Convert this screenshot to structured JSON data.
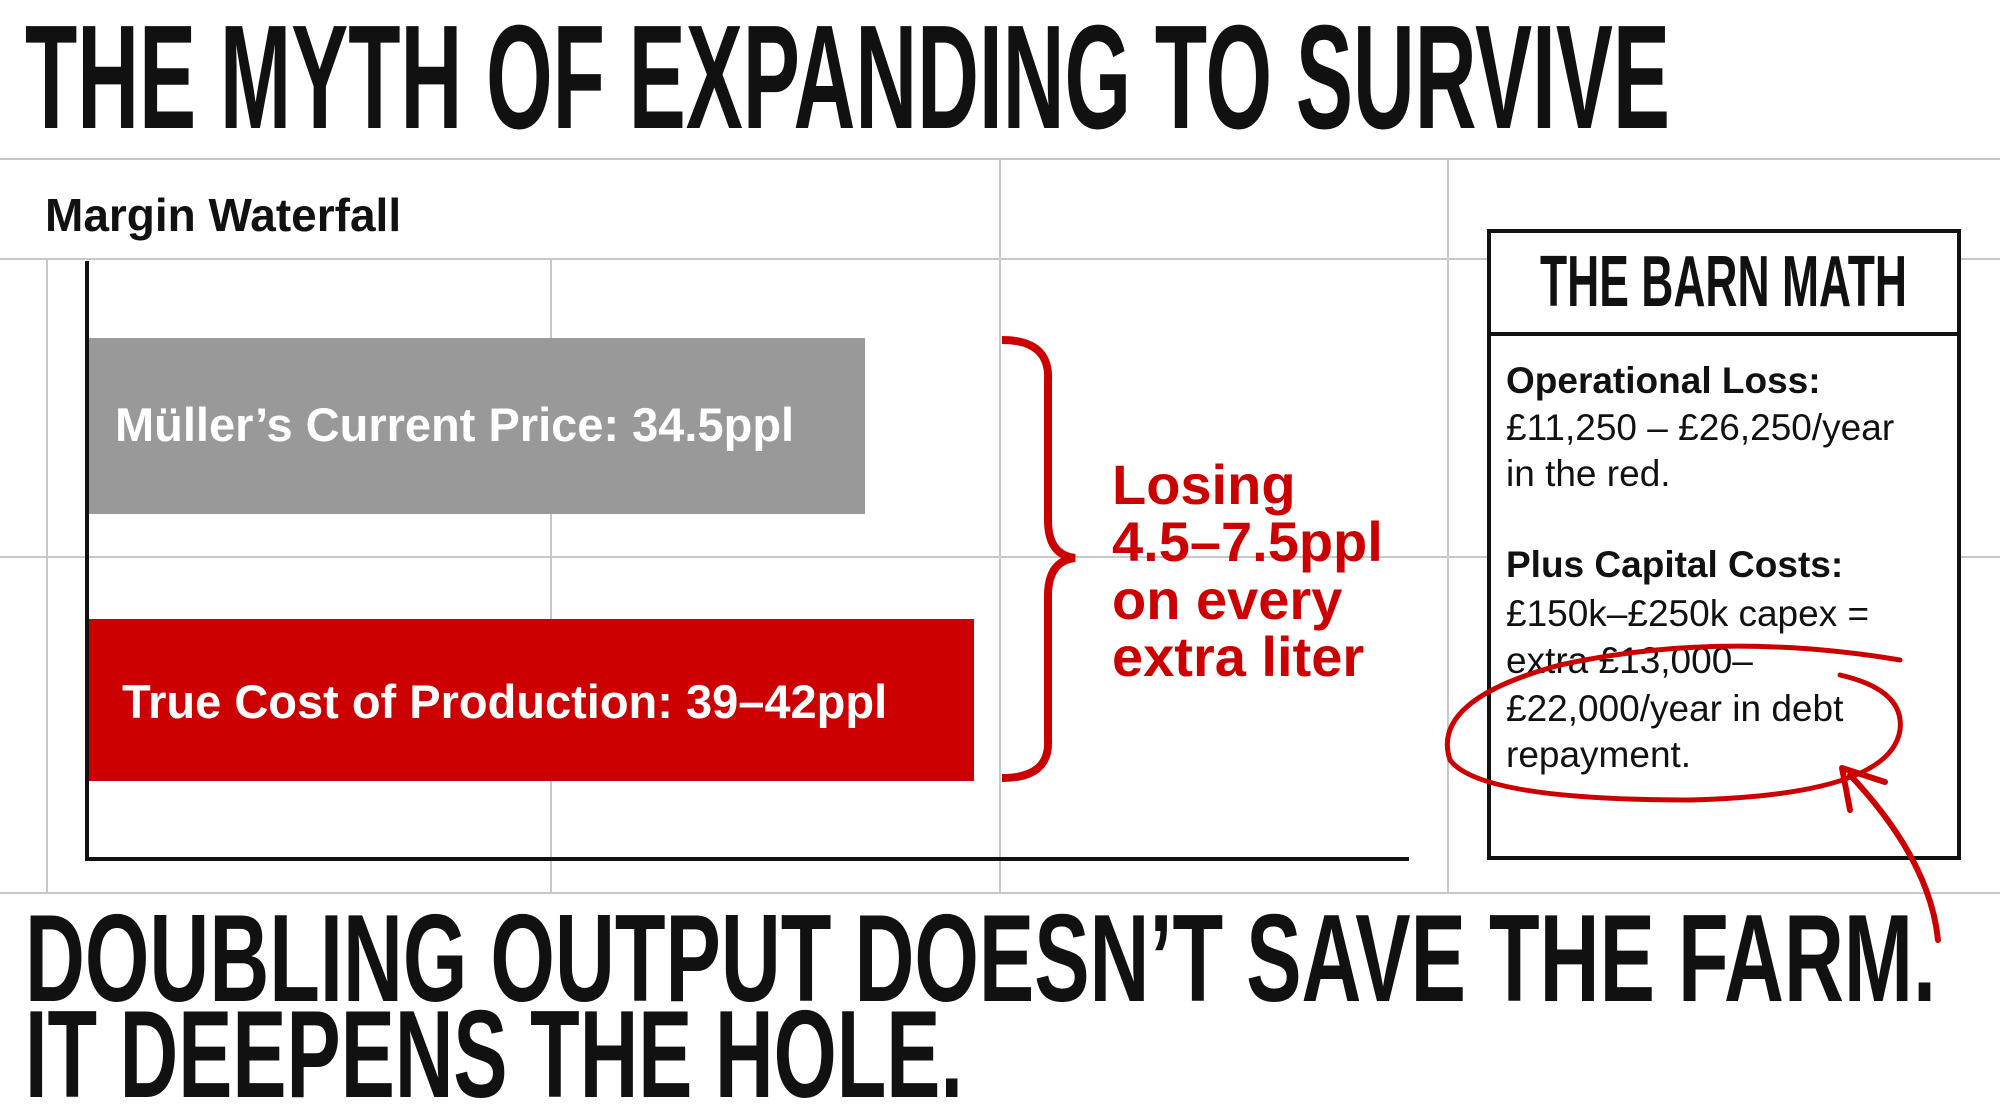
{
  "title": "THE MYTH OF EXPANDING TO SURVIVE",
  "panel_title": "Margin Waterfall",
  "bars": [
    {
      "label": "Müller’s Current Price: 34.5ppl"
    },
    {
      "label": "True Cost of Production: 39–42ppl"
    }
  ],
  "annotation": [
    "Losing",
    "4.5–7.5ppl",
    "on every",
    "extra liter"
  ],
  "box": {
    "title": "THE BARN MATH",
    "sections": [
      {
        "heading": "Operational Loss:",
        "lines": [
          "£11,250 – £26,250/year",
          "in the red."
        ]
      },
      {
        "heading": "Plus Capital Costs:",
        "lines": [
          "£150k–£250k capex =",
          "extra £13,000–",
          "£22,000/year in debt",
          "repayment."
        ]
      }
    ]
  },
  "footer": [
    "DOUBLING OUTPUT DOESN’T SAVE THE FARM.",
    "IT DEEPENS THE HOLE."
  ]
}
